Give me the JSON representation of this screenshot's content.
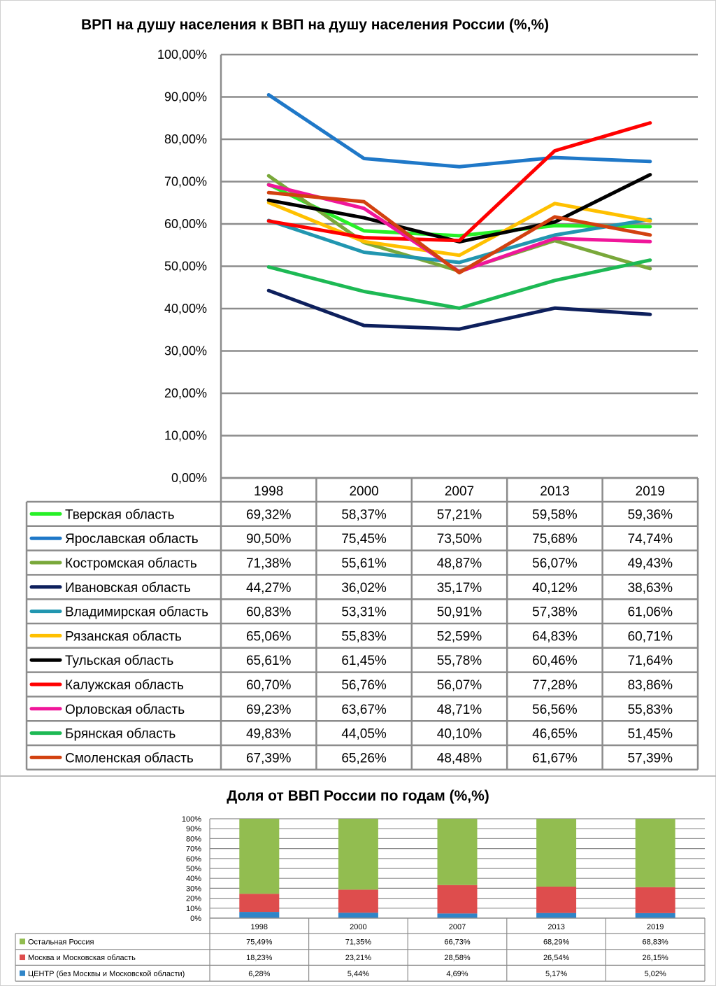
{
  "chart_data": [
    {
      "type": "line",
      "title": "ВРП на душу населения к ВВП на душу населения России (%,%)",
      "categories": [
        "1998",
        "2000",
        "2007",
        "2013",
        "2019"
      ],
      "y_ticks": [
        "0,00%",
        "10,00%",
        "20,00%",
        "30,00%",
        "40,00%",
        "50,00%",
        "60,00%",
        "70,00%",
        "80,00%",
        "90,00%",
        "100,00%"
      ],
      "ylim": [
        0,
        100
      ],
      "grid": true,
      "legend": "data-table",
      "series": [
        {
          "name": "Тверская область",
          "color": "#27f027",
          "values": [
            69.32,
            58.37,
            57.21,
            59.58,
            59.36
          ],
          "labels": [
            "69,32%",
            "58,37%",
            "57,21%",
            "59,58%",
            "59,36%"
          ]
        },
        {
          "name": "Ярославская область",
          "color": "#1f78c8",
          "values": [
            90.5,
            75.45,
            73.5,
            75.68,
            74.74
          ],
          "labels": [
            "90,50%",
            "75,45%",
            "73,50%",
            "75,68%",
            "74,74%"
          ]
        },
        {
          "name": "Костромская область",
          "color": "#79a83a",
          "values": [
            71.38,
            55.61,
            48.87,
            56.07,
            49.43
          ],
          "labels": [
            "71,38%",
            "55,61%",
            "48,87%",
            "56,07%",
            "49,43%"
          ]
        },
        {
          "name": "Ивановская область",
          "color": "#0d1f5c",
          "values": [
            44.27,
            36.02,
            35.17,
            40.12,
            38.63
          ],
          "labels": [
            "44,27%",
            "36,02%",
            "35,17%",
            "40,12%",
            "38,63%"
          ]
        },
        {
          "name": "Владимирская область",
          "color": "#2196b0",
          "values": [
            60.83,
            53.31,
            50.91,
            57.38,
            61.06
          ],
          "labels": [
            "60,83%",
            "53,31%",
            "50,91%",
            "57,38%",
            "61,06%"
          ]
        },
        {
          "name": "Рязанская область",
          "color": "#ffc000",
          "values": [
            65.06,
            55.83,
            52.59,
            64.83,
            60.71
          ],
          "labels": [
            "65,06%",
            "55,83%",
            "52,59%",
            "64,83%",
            "60,71%"
          ]
        },
        {
          "name": "Тульская область",
          "color": "#000000",
          "values": [
            65.61,
            61.45,
            55.78,
            60.46,
            71.64
          ],
          "labels": [
            "65,61%",
            "61,45%",
            "55,78%",
            "60,46%",
            "71,64%"
          ]
        },
        {
          "name": "Калужская область",
          "color": "#ff0000",
          "values": [
            60.7,
            56.76,
            56.07,
            77.28,
            83.86
          ],
          "labels": [
            "60,70%",
            "56,76%",
            "56,07%",
            "77,28%",
            "83,86%"
          ]
        },
        {
          "name": "Орловская область",
          "color": "#f0169a",
          "values": [
            69.23,
            63.67,
            48.71,
            56.56,
            55.83
          ],
          "labels": [
            "69,23%",
            "63,67%",
            "48,71%",
            "56,56%",
            "55,83%"
          ]
        },
        {
          "name": "Брянская область",
          "color": "#1db954",
          "values": [
            49.83,
            44.05,
            40.1,
            46.65,
            51.45
          ],
          "labels": [
            "49,83%",
            "44,05%",
            "40,10%",
            "46,65%",
            "51,45%"
          ]
        },
        {
          "name": "Смоленская область",
          "color": "#d2410f",
          "values": [
            67.39,
            65.26,
            48.48,
            61.67,
            57.39
          ],
          "labels": [
            "67,39%",
            "65,26%",
            "48,48%",
            "61,67%",
            "57,39%"
          ]
        }
      ]
    },
    {
      "type": "bar",
      "stacked": true,
      "title": "Доля от ВВП России по годам (%,%)",
      "categories": [
        "1998",
        "2000",
        "2007",
        "2013",
        "2019"
      ],
      "y_ticks": [
        "0%",
        "10%",
        "20%",
        "30%",
        "40%",
        "50%",
        "60%",
        "70%",
        "80%",
        "90%",
        "100%"
      ],
      "ylim": [
        0,
        100
      ],
      "grid": true,
      "legend": "data-table",
      "series": [
        {
          "name": "Остальная Россия",
          "color": "#92bd50",
          "values": [
            75.49,
            71.35,
            66.73,
            68.29,
            68.83
          ],
          "labels": [
            "75,49%",
            "71,35%",
            "66,73%",
            "68,29%",
            "68,83%"
          ]
        },
        {
          "name": "Москва и Московская область",
          "color": "#de4d4d",
          "values": [
            18.23,
            23.21,
            28.58,
            26.54,
            26.15
          ],
          "labels": [
            "18,23%",
            "23,21%",
            "28,58%",
            "26,54%",
            "26,15%"
          ]
        },
        {
          "name": "ЦЕНТР (без Москвы и Московской области)",
          "color": "#2f85c8",
          "values": [
            6.28,
            5.44,
            4.69,
            5.17,
            5.02
          ],
          "labels": [
            "6,28%",
            "5,44%",
            "4,69%",
            "5,17%",
            "5,02%"
          ]
        }
      ]
    }
  ]
}
